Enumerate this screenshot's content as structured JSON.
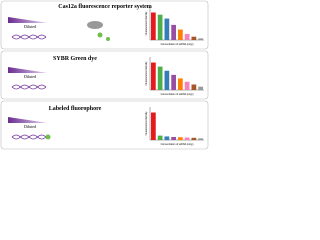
{
  "panels": [
    {
      "title": "Cas12a fluorescence reporter system",
      "label": "Diluted",
      "chart": {
        "type": "bar",
        "y_label": "Fluorescence intensity",
        "x_label": "Concentration of ssDNA (copy)",
        "values": [
          1.0,
          0.92,
          0.78,
          0.55,
          0.38,
          0.22,
          0.12,
          0.06
        ],
        "ylim": [
          0,
          1.2
        ],
        "colors": [
          "#e41a1c",
          "#4daf4a",
          "#377eb8",
          "#984ea3",
          "#ff7f00",
          "#f781bf",
          "#a65628",
          "#999999"
        ]
      }
    },
    {
      "title": "SYBR Green dye",
      "label": "Diluted",
      "chart": {
        "type": "bar",
        "y_label": "Fluorescence intensity",
        "x_label": "Concentration of ssDNA (copy)",
        "values": [
          1.0,
          0.85,
          0.7,
          0.55,
          0.42,
          0.3,
          0.2,
          0.12
        ],
        "ylim": [
          0,
          1.2
        ],
        "colors": [
          "#e41a1c",
          "#4daf4a",
          "#377eb8",
          "#984ea3",
          "#ff7f00",
          "#f781bf",
          "#a65628",
          "#999999"
        ]
      }
    },
    {
      "title": "Labeled fluorophore",
      "label": "Diluted",
      "chart": {
        "type": "bar",
        "y_label": "Fluorescence intensity",
        "x_label": "Concentration of ssDNA (copy)",
        "values": [
          1.0,
          0.16,
          0.13,
          0.11,
          0.1,
          0.09,
          0.08,
          0.06
        ],
        "ylim": [
          0,
          1.2
        ],
        "colors": [
          "#e41a1c",
          "#4daf4a",
          "#377eb8",
          "#984ea3",
          "#ff7f00",
          "#f781bf",
          "#a65628",
          "#999999"
        ]
      }
    }
  ]
}
